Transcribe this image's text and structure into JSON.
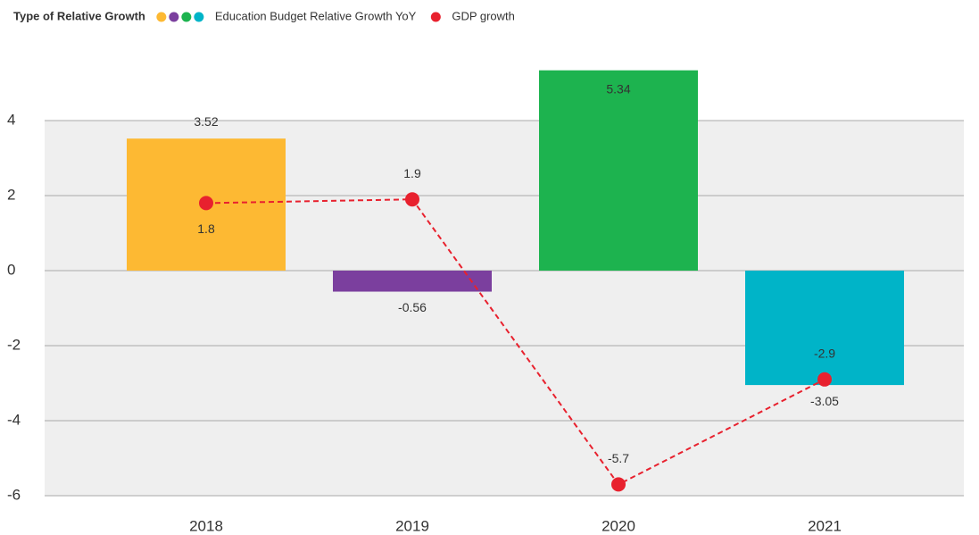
{
  "chart_data": {
    "type": "bar",
    "legend_title": "Type of Relative Growth",
    "categories": [
      "2018",
      "2019",
      "2020",
      "2021"
    ],
    "series": [
      {
        "name": "Education Budget Relative Growth YoY",
        "type": "bar",
        "colors": [
          "#fdb933",
          "#7b3f9e",
          "#1db34f",
          "#00b4c8"
        ],
        "values": [
          3.52,
          -0.56,
          5.34,
          -3.05
        ]
      },
      {
        "name": "GDP growth",
        "type": "line",
        "color": "#e8212e",
        "values": [
          1.8,
          1.9,
          -5.7,
          -2.9
        ]
      }
    ],
    "ylim": [
      -6,
      5.4
    ],
    "yticks": [
      -6,
      -4,
      -2,
      0,
      2,
      4
    ],
    "grid": true
  }
}
